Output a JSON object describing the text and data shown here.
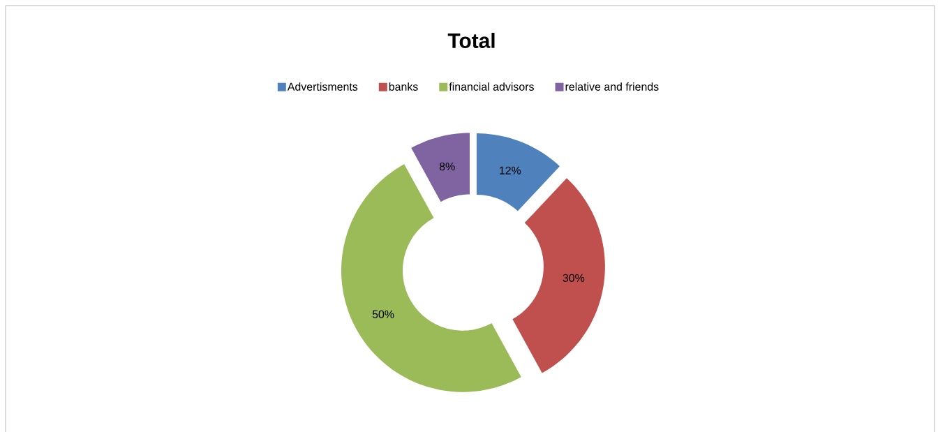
{
  "chart_data": {
    "type": "donut",
    "title": "Total",
    "categories": [
      "Advertisments",
      "banks",
      "financial advisors",
      "relative and friends"
    ],
    "values": [
      12,
      30,
      50,
      8
    ],
    "value_labels": [
      "12%",
      "30%",
      "50%",
      "8%"
    ],
    "colors": [
      "#4f81bd",
      "#c0504d",
      "#9bbb59",
      "#8064a2"
    ],
    "legend": "top"
  }
}
